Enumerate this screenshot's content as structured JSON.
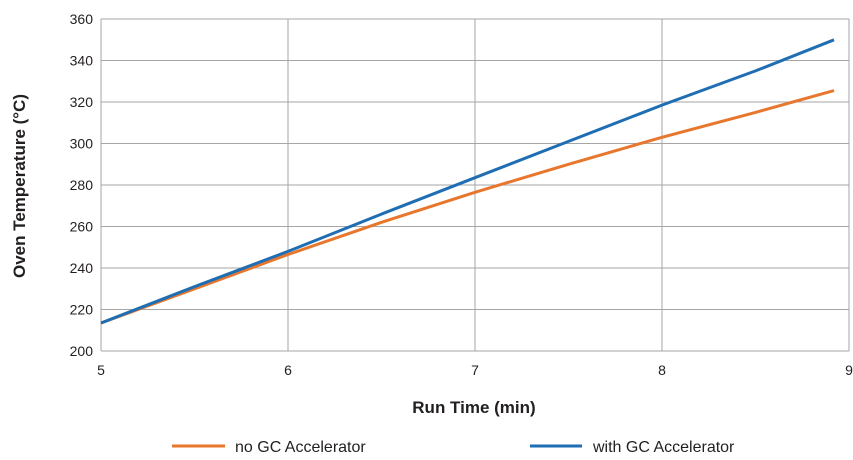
{
  "chart_data": {
    "type": "line",
    "title": "",
    "xlabel": "Run Time (min)",
    "ylabel": "Oven Temperature (°C)",
    "xlim": [
      5,
      9
    ],
    "ylim": [
      200,
      360
    ],
    "x_ticks": [
      5,
      6,
      7,
      8,
      9
    ],
    "y_ticks": [
      200,
      220,
      240,
      260,
      280,
      300,
      320,
      340,
      360
    ],
    "grid": true,
    "legend_position": "bottom",
    "series": [
      {
        "name": "no GC Accelerator",
        "color": "#e8772e",
        "x": [
          5,
          5.5,
          6,
          6.5,
          7,
          7.5,
          8,
          8.5,
          8.92
        ],
        "y": [
          213.5,
          230,
          246.5,
          262,
          276.5,
          290,
          303,
          315,
          325.5
        ]
      },
      {
        "name": "with GC Accelerator",
        "color": "#1f6db3",
        "x": [
          5,
          5.5,
          6,
          6.5,
          7,
          7.5,
          8,
          8.5,
          8.92
        ],
        "y": [
          213.5,
          231,
          248,
          266,
          283.5,
          301,
          318.5,
          335,
          350
        ]
      }
    ]
  }
}
